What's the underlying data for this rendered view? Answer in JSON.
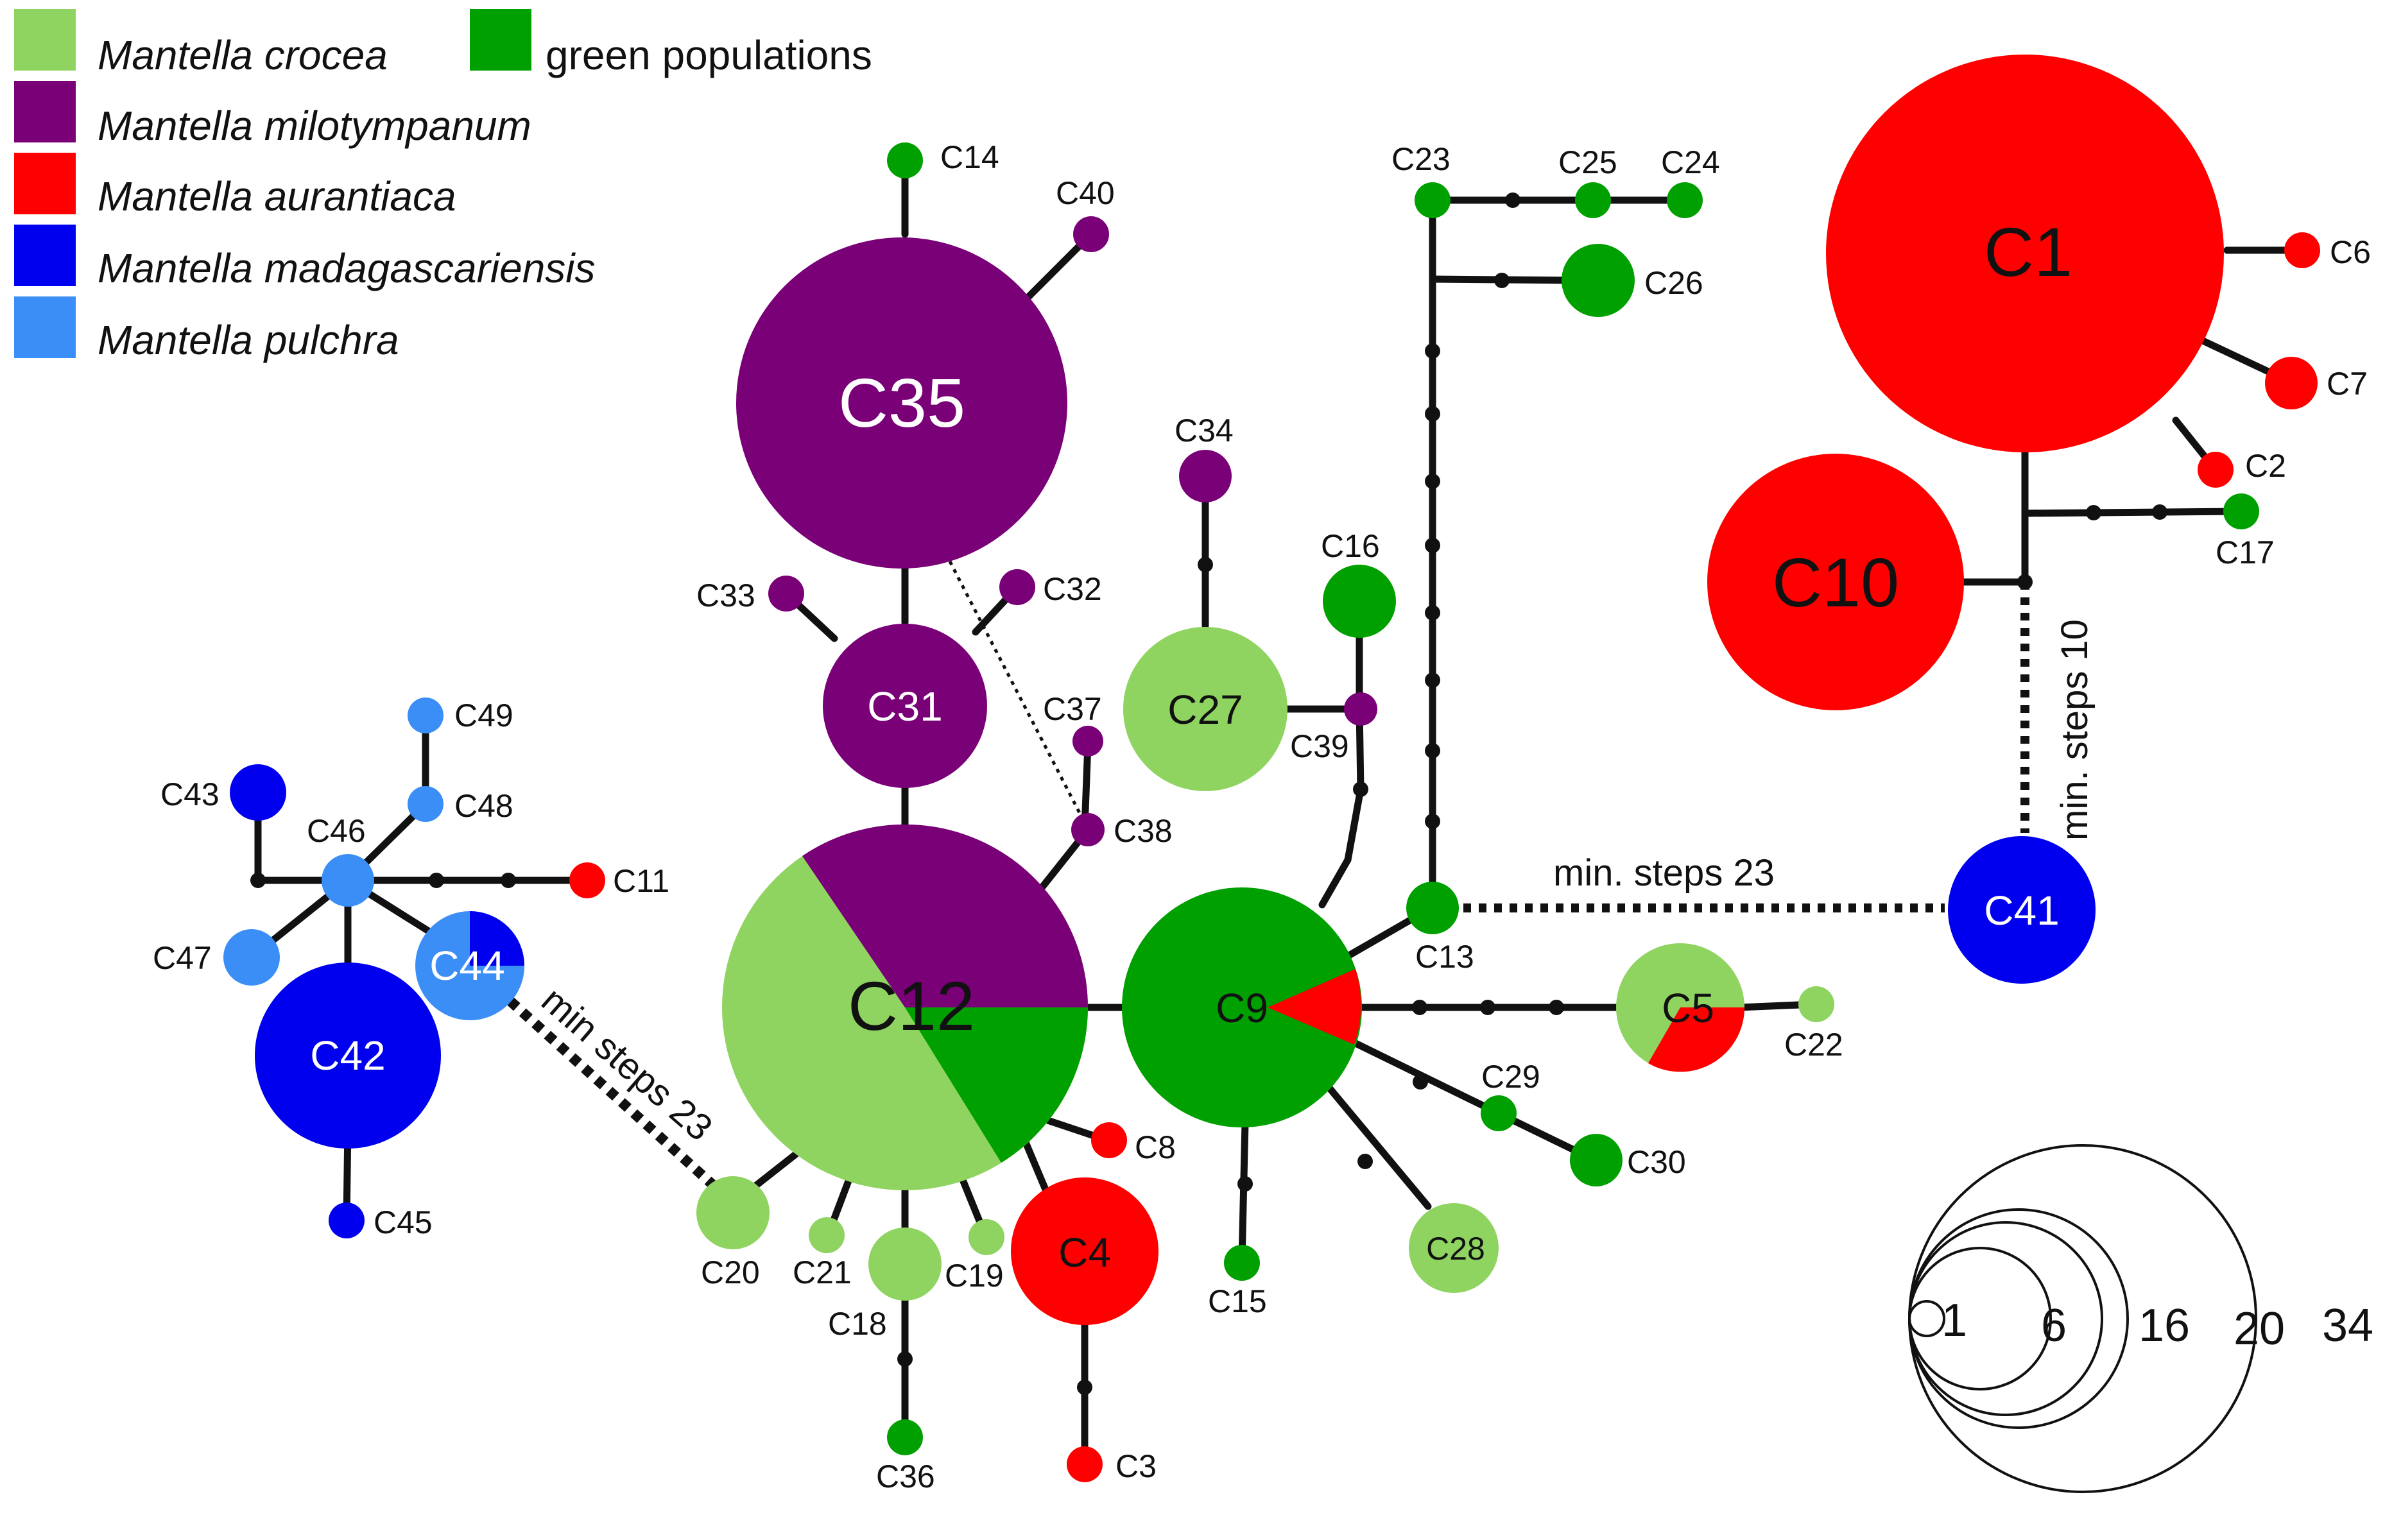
{
  "legend": [
    {
      "key": "crocea",
      "label": "Mantella crocea",
      "color": "#8fd460",
      "italic": true
    },
    {
      "key": "green",
      "label": "green populations",
      "color": "#00a000",
      "italic": false
    },
    {
      "key": "milotympanum",
      "label": "Mantella milotympanum",
      "color": "#7a0078",
      "italic": true
    },
    {
      "key": "aurantiaca",
      "label": "Mantella aurantiaca",
      "color": "#ff0000",
      "italic": true
    },
    {
      "key": "madagascariensis",
      "label": "Mantella madagascariensis",
      "color": "#0000ee",
      "italic": true
    },
    {
      "key": "pulchra",
      "label": "Mantella pulchra",
      "color": "#3a8ef6",
      "italic": true
    }
  ],
  "haplotypes": [
    {
      "id": "C1",
      "label": "C1"
    },
    {
      "id": "C2",
      "label": "C2"
    },
    {
      "id": "C3",
      "label": "C3"
    },
    {
      "id": "C4",
      "label": "C4"
    },
    {
      "id": "C5",
      "label": "C5"
    },
    {
      "id": "C6",
      "label": "C6"
    },
    {
      "id": "C7",
      "label": "C7"
    },
    {
      "id": "C8",
      "label": "C8"
    },
    {
      "id": "C9",
      "label": "C9"
    },
    {
      "id": "C10",
      "label": "C10"
    },
    {
      "id": "C11",
      "label": "C11"
    },
    {
      "id": "C12",
      "label": "C12"
    },
    {
      "id": "C13",
      "label": "C13"
    },
    {
      "id": "C14",
      "label": "C14"
    },
    {
      "id": "C15",
      "label": "C15"
    },
    {
      "id": "C16",
      "label": "C16"
    },
    {
      "id": "C17",
      "label": "C17"
    },
    {
      "id": "C18",
      "label": "C18"
    },
    {
      "id": "C19",
      "label": "C19"
    },
    {
      "id": "C20",
      "label": "C20"
    },
    {
      "id": "C21",
      "label": "C21"
    },
    {
      "id": "C22",
      "label": "C22"
    },
    {
      "id": "C23",
      "label": "C23"
    },
    {
      "id": "C24",
      "label": "C24"
    },
    {
      "id": "C25",
      "label": "C25"
    },
    {
      "id": "C26",
      "label": "C26"
    },
    {
      "id": "C27",
      "label": "C27"
    },
    {
      "id": "C28",
      "label": "C28"
    },
    {
      "id": "C29",
      "label": "C29"
    },
    {
      "id": "C30",
      "label": "C30"
    },
    {
      "id": "C31",
      "label": "C31"
    },
    {
      "id": "C32",
      "label": "C32"
    },
    {
      "id": "C33",
      "label": "C33"
    },
    {
      "id": "C34",
      "label": "C34"
    },
    {
      "id": "C35",
      "label": "C35"
    },
    {
      "id": "C36",
      "label": "C36"
    },
    {
      "id": "C37",
      "label": "C37"
    },
    {
      "id": "C38",
      "label": "C38"
    },
    {
      "id": "C39",
      "label": "C39"
    },
    {
      "id": "C40",
      "label": "C40"
    },
    {
      "id": "C41",
      "label": "C41"
    },
    {
      "id": "C42",
      "label": "C42"
    },
    {
      "id": "C43",
      "label": "C43"
    },
    {
      "id": "C44",
      "label": "C44"
    },
    {
      "id": "C45",
      "label": "C45"
    },
    {
      "id": "C46",
      "label": "C46"
    },
    {
      "id": "C47",
      "label": "C47"
    },
    {
      "id": "C48",
      "label": "C48"
    },
    {
      "id": "C49",
      "label": "C49"
    }
  ],
  "annotations": {
    "min_steps_10": "min. steps 10",
    "min_steps_23_right": "min. steps 23",
    "min_steps_23_left": "min steps 23"
  },
  "scale": {
    "values": [
      "1",
      "6",
      "16",
      "20",
      "34"
    ]
  }
}
